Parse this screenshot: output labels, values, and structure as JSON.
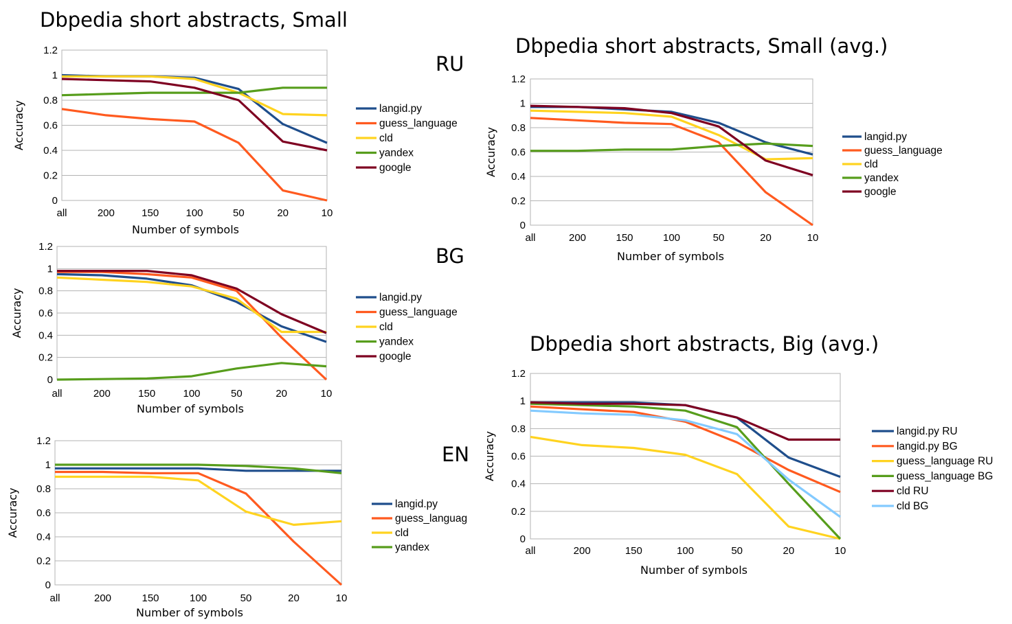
{
  "titles": {
    "left": "Dbpedia short abstracts, Small",
    "top_right": "Dbpedia short abstracts, Small (avg.)",
    "bottom_right": "Dbpedia short abstracts, Big (avg.)"
  },
  "colors": {
    "langid.py": "#1f4e8c",
    "guess_language": "#ff5a1f",
    "cld": "#ffd320",
    "yandex": "#579d1c",
    "google": "#7e0021",
    "cld BG": "#83caff",
    "grid": "#b3b3b3"
  },
  "chart_data": [
    {
      "id": "ru",
      "type": "line",
      "tag": "RU",
      "title": "",
      "xlabel": "Number of symbols",
      "ylabel": "Accuracy",
      "ylim": [
        0,
        1.2
      ],
      "yticks": [
        "0",
        "0.2",
        "0.4",
        "0.6",
        "0.8",
        "1",
        "1.2"
      ],
      "grid": true,
      "legend": "right",
      "categories": [
        "all",
        "200",
        "150",
        "100",
        "50",
        "20",
        "10"
      ],
      "series": [
        {
          "name": "langid.py",
          "values": [
            1.0,
            0.99,
            0.99,
            0.98,
            0.89,
            0.61,
            0.46
          ]
        },
        {
          "name": "guess_language",
          "values": [
            0.73,
            0.68,
            0.65,
            0.63,
            0.46,
            0.08,
            0.0
          ]
        },
        {
          "name": "cld",
          "values": [
            0.99,
            0.99,
            0.99,
            0.97,
            0.86,
            0.69,
            0.68
          ]
        },
        {
          "name": "yandex",
          "values": [
            0.84,
            0.85,
            0.86,
            0.86,
            0.86,
            0.9,
            0.9
          ]
        },
        {
          "name": "google",
          "values": [
            0.97,
            0.96,
            0.95,
            0.9,
            0.8,
            0.47,
            0.4
          ]
        }
      ]
    },
    {
      "id": "bg",
      "type": "line",
      "tag": "BG",
      "title": "",
      "xlabel": "Number of symbols",
      "ylabel": "Accuracy",
      "ylim": [
        0,
        1.2
      ],
      "yticks": [
        "0",
        "0.2",
        "0.4",
        "0.6",
        "0.8",
        "1",
        "1.2"
      ],
      "grid": true,
      "legend": "right",
      "categories": [
        "all",
        "200",
        "150",
        "100",
        "50",
        "20",
        "10"
      ],
      "series": [
        {
          "name": "langid.py",
          "values": [
            0.95,
            0.94,
            0.91,
            0.85,
            0.7,
            0.48,
            0.34
          ]
        },
        {
          "name": "guess_language",
          "values": [
            0.97,
            0.97,
            0.95,
            0.92,
            0.8,
            0.38,
            0.0
          ]
        },
        {
          "name": "cld",
          "values": [
            0.92,
            0.9,
            0.88,
            0.84,
            0.73,
            0.43,
            0.43
          ]
        },
        {
          "name": "yandex",
          "values": [
            0.0,
            0.005,
            0.01,
            0.03,
            0.1,
            0.15,
            0.12
          ]
        },
        {
          "name": "google",
          "values": [
            0.98,
            0.98,
            0.98,
            0.94,
            0.82,
            0.59,
            0.42
          ]
        }
      ]
    },
    {
      "id": "en",
      "type": "line",
      "tag": "EN",
      "title": "",
      "xlabel": "Number of symbols",
      "ylabel": "Accuracy",
      "ylim": [
        0,
        1.2
      ],
      "yticks": [
        "0",
        "0.2",
        "0.4",
        "0.6",
        "0.8",
        "1",
        "1.2"
      ],
      "grid": true,
      "legend": "right",
      "categories": [
        "all",
        "200",
        "150",
        "100",
        "50",
        "20",
        "10"
      ],
      "series": [
        {
          "name": "langid.py",
          "values": [
            0.97,
            0.97,
            0.97,
            0.97,
            0.95,
            0.95,
            0.95
          ]
        },
        {
          "name": "guess_languag",
          "values": [
            0.94,
            0.94,
            0.93,
            0.93,
            0.76,
            0.36,
            0.0
          ]
        },
        {
          "name": "cld",
          "values": [
            0.9,
            0.9,
            0.9,
            0.87,
            0.61,
            0.5,
            0.53
          ]
        },
        {
          "name": "yandex",
          "values": [
            1.0,
            1.0,
            1.0,
            1.0,
            0.99,
            0.97,
            0.93
          ]
        }
      ]
    },
    {
      "id": "small_avg",
      "type": "line",
      "tag": "",
      "title": "Dbpedia short abstracts, Small (avg.)",
      "xlabel": "Number of symbols",
      "ylabel": "Accuracy",
      "ylim": [
        0,
        1.2
      ],
      "yticks": [
        "0",
        "0.2",
        "0.4",
        "0.6",
        "0.8",
        "1",
        "1.2"
      ],
      "grid": true,
      "legend": "right",
      "categories": [
        "all",
        "200",
        "150",
        "100",
        "50",
        "20",
        "10"
      ],
      "series": [
        {
          "name": "langid.py",
          "values": [
            0.97,
            0.97,
            0.95,
            0.93,
            0.84,
            0.68,
            0.58
          ]
        },
        {
          "name": "guess_language",
          "values": [
            0.88,
            0.86,
            0.84,
            0.83,
            0.68,
            0.27,
            0.0
          ]
        },
        {
          "name": "cld",
          "values": [
            0.94,
            0.93,
            0.92,
            0.89,
            0.74,
            0.54,
            0.55
          ]
        },
        {
          "name": "yandex",
          "values": [
            0.61,
            0.61,
            0.62,
            0.62,
            0.65,
            0.67,
            0.65
          ]
        },
        {
          "name": "google",
          "values": [
            0.98,
            0.97,
            0.96,
            0.92,
            0.81,
            0.53,
            0.41
          ]
        }
      ]
    },
    {
      "id": "big_avg",
      "type": "line",
      "tag": "",
      "title": "Dbpedia short abstracts, Big (avg.)",
      "xlabel": "Number of symbols",
      "ylabel": "Accuracy",
      "ylim": [
        0,
        1.2
      ],
      "yticks": [
        "0",
        "0.2",
        "0.4",
        "0.6",
        "0.8",
        "1",
        "1.2"
      ],
      "grid": true,
      "legend": "right",
      "categories": [
        "all",
        "200",
        "150",
        "100",
        "50",
        "20",
        "10"
      ],
      "series": [
        {
          "name": "langid.py RU",
          "values": [
            0.99,
            0.99,
            0.99,
            0.97,
            0.88,
            0.59,
            0.45
          ]
        },
        {
          "name": "langid.py BG",
          "values": [
            0.96,
            0.94,
            0.92,
            0.85,
            0.7,
            0.5,
            0.34
          ]
        },
        {
          "name": "guess_language RU",
          "values": [
            0.74,
            0.68,
            0.66,
            0.61,
            0.47,
            0.09,
            0.0
          ]
        },
        {
          "name": "guess_language BG",
          "values": [
            0.98,
            0.97,
            0.96,
            0.93,
            0.81,
            0.4,
            0.0
          ]
        },
        {
          "name": "cld RU",
          "values": [
            0.99,
            0.98,
            0.98,
            0.97,
            0.88,
            0.72,
            0.72
          ]
        },
        {
          "name": "cld BG",
          "values": [
            0.93,
            0.91,
            0.9,
            0.86,
            0.76,
            0.43,
            0.16
          ]
        }
      ]
    }
  ]
}
